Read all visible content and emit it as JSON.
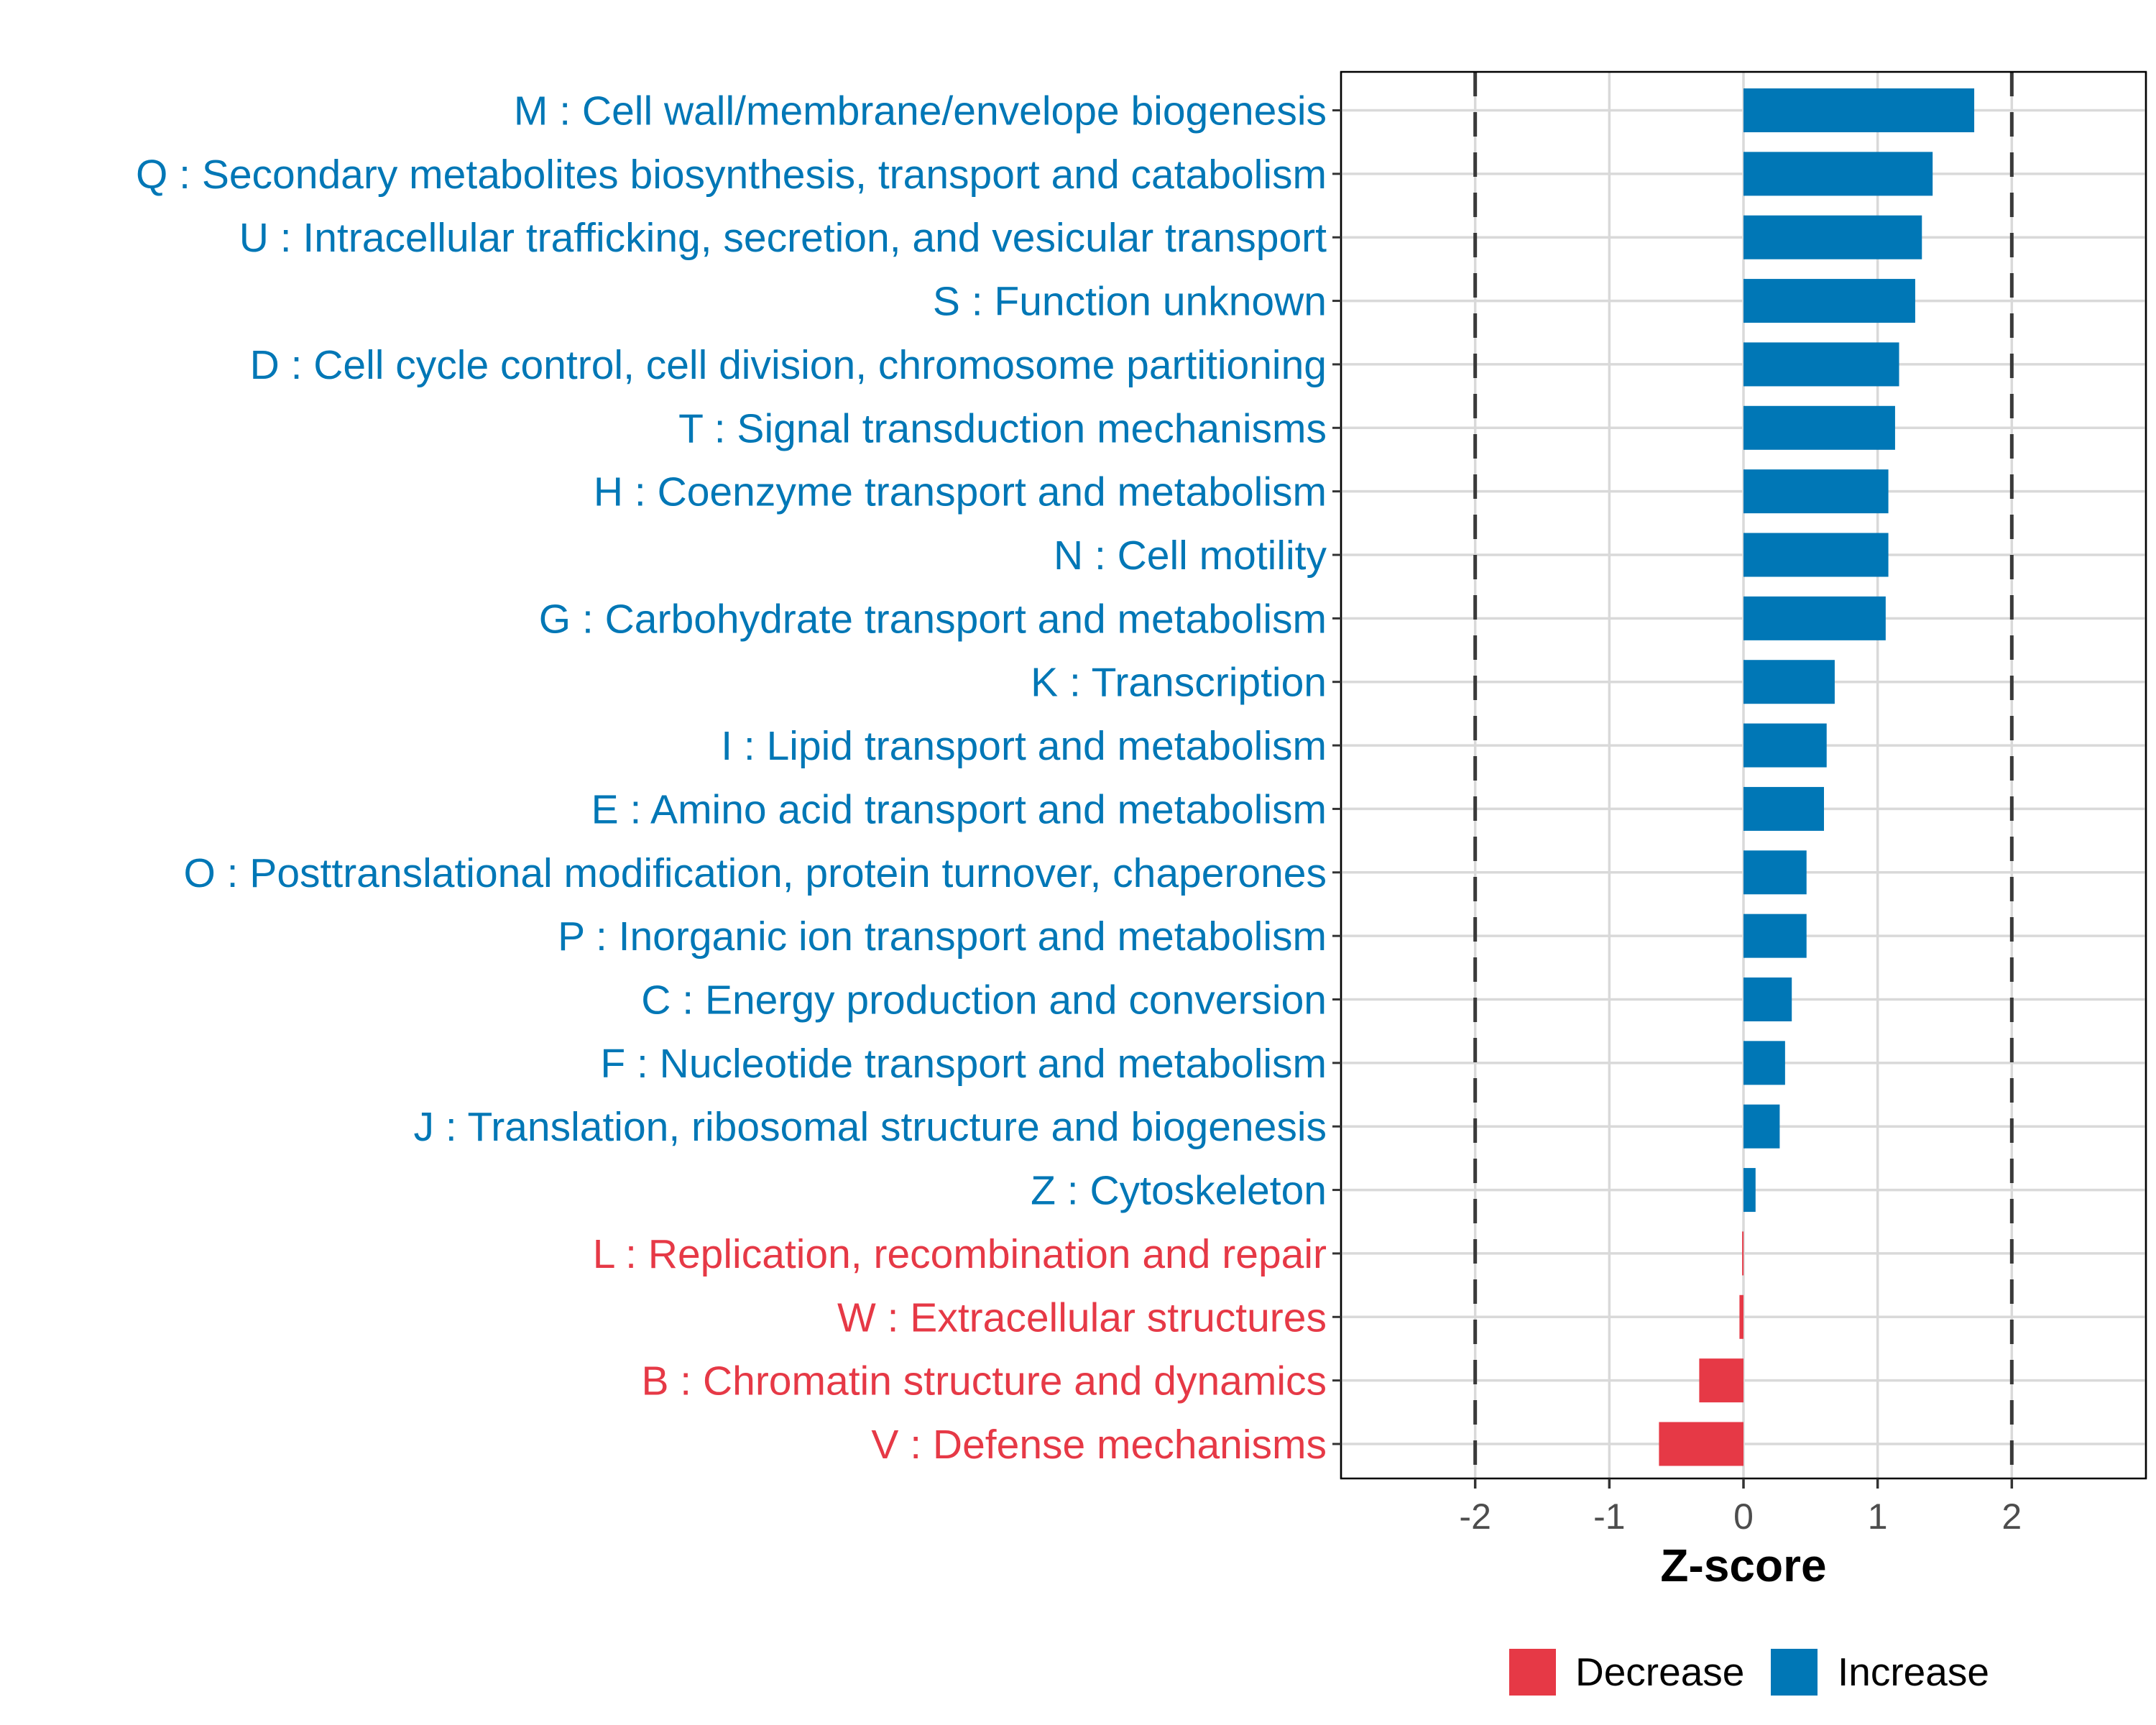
{
  "chart_data": {
    "type": "bar",
    "orientation": "horizontal",
    "title": "",
    "xlabel": "Z-score",
    "ylabel": "",
    "xlim": [
      -3,
      3
    ],
    "xticks": [
      -2,
      -1,
      0,
      1,
      2
    ],
    "reference_lines": [
      -2,
      2
    ],
    "grid": true,
    "legend_position": "bottom",
    "colors": {
      "Decrease": "#E63946",
      "Increase": "#0077B6"
    },
    "legend": [
      {
        "label": "Decrease",
        "color": "#E63946"
      },
      {
        "label": "Increase",
        "color": "#0077B6"
      }
    ],
    "categories": [
      "M : Cell wall/membrane/envelope biogenesis",
      "Q : Secondary metabolites biosynthesis, transport and catabolism",
      "U : Intracellular trafficking, secretion, and vesicular transport",
      "S : Function unknown",
      "D : Cell cycle control, cell division, chromosome partitioning",
      "T : Signal transduction mechanisms",
      "H : Coenzyme transport and metabolism",
      "N : Cell motility",
      "G : Carbohydrate transport and metabolism",
      "K : Transcription",
      "I : Lipid transport and metabolism",
      "E : Amino acid transport and metabolism",
      "O : Posttranslational modification, protein turnover, chaperones",
      "P : Inorganic ion transport and metabolism",
      "C : Energy production and conversion",
      "F : Nucleotide transport and metabolism",
      "J : Translation, ribosomal structure and biogenesis",
      "Z : Cytoskeleton",
      "L : Replication, recombination and repair",
      "W : Extracellular structures",
      "B : Chromatin structure and dynamics",
      "V : Defense mechanisms"
    ],
    "values": [
      1.72,
      1.41,
      1.33,
      1.28,
      1.16,
      1.13,
      1.08,
      1.08,
      1.06,
      0.68,
      0.62,
      0.6,
      0.47,
      0.47,
      0.36,
      0.31,
      0.27,
      0.09,
      -0.01,
      -0.03,
      -0.33,
      -0.63
    ],
    "direction": [
      "Increase",
      "Increase",
      "Increase",
      "Increase",
      "Increase",
      "Increase",
      "Increase",
      "Increase",
      "Increase",
      "Increase",
      "Increase",
      "Increase",
      "Increase",
      "Increase",
      "Increase",
      "Increase",
      "Increase",
      "Increase",
      "Decrease",
      "Decrease",
      "Decrease",
      "Decrease"
    ]
  }
}
